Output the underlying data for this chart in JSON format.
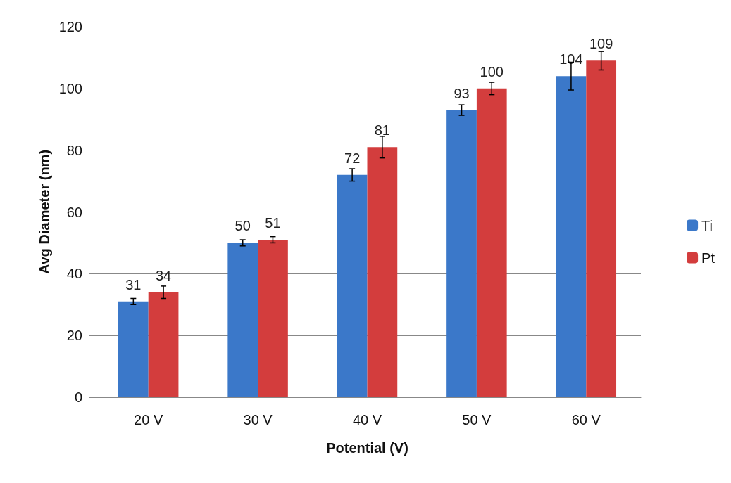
{
  "chart_data": {
    "type": "bar",
    "xlabel": "Potential (V)",
    "ylabel": "Avg Diameter (nm)",
    "categories": [
      "20 V",
      "30 V",
      "40 V",
      "50 V",
      "60 V"
    ],
    "series": [
      {
        "name": "Ti",
        "color": "#3b78c9",
        "values": [
          31,
          50,
          72,
          93,
          104
        ],
        "errors": [
          1,
          1,
          2,
          1.7,
          4.5
        ]
      },
      {
        "name": "Pt",
        "color": "#d33d3d",
        "values": [
          34,
          51,
          81,
          100,
          109
        ],
        "errors": [
          2,
          1,
          3.5,
          2,
          3
        ]
      }
    ],
    "ylim": [
      0,
      120
    ],
    "yticks": [
      0,
      20,
      40,
      60,
      80,
      100,
      120
    ],
    "grid": "y",
    "legend": "right",
    "data_labels": true
  }
}
